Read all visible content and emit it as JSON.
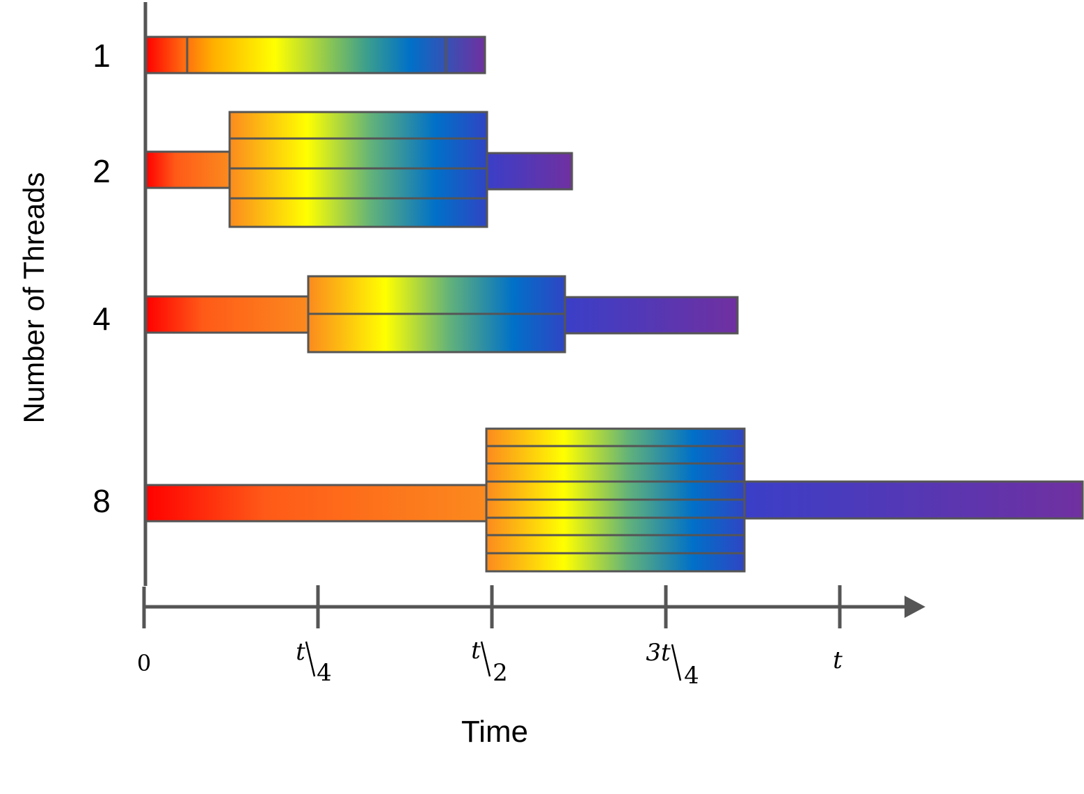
{
  "axes": {
    "y_label": "Number of Threads",
    "x_label": "Time",
    "x_ticks": [
      {
        "num": "0",
        "den": ""
      },
      {
        "num": "t",
        "den": "4"
      },
      {
        "num": "t",
        "den": "2"
      },
      {
        "num": "3t",
        "den": "4"
      },
      {
        "num": "t",
        "den": ""
      }
    ]
  },
  "rows": [
    {
      "label": "1",
      "threads": 1
    },
    {
      "label": "2",
      "threads": 2
    },
    {
      "label": "4",
      "threads": 4
    },
    {
      "label": "8",
      "threads": 8
    }
  ],
  "colors": {
    "axis": "#555555",
    "red": "#ff0000",
    "orange": "#fb8a1e",
    "yellow": "#ffff00",
    "green": "#4caf70",
    "blue": "#0070c8",
    "indigo": "#3a3fc8",
    "purple": "#7030a0"
  }
}
